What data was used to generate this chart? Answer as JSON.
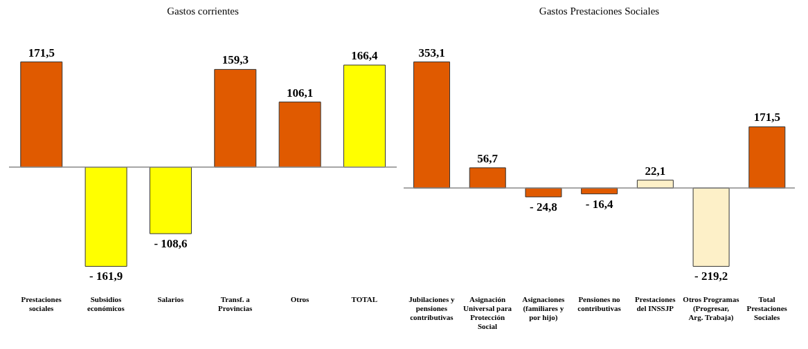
{
  "chart_data": [
    {
      "type": "bar",
      "title": "Gastos corrientes",
      "categories": [
        "Prestaciones sociales",
        "Subsidios económicos",
        "Salarios",
        "Transf. a Provincias",
        "Otros",
        "TOTAL"
      ],
      "values": [
        171.5,
        -161.9,
        -108.6,
        159.3,
        106.1,
        166.4
      ],
      "colors": [
        "#e05a00",
        "#ffff00",
        "#ffff00",
        "#e05a00",
        "#e05a00",
        "#ffff00"
      ],
      "value_labels": [
        "171,5",
        "- 161,9",
        "- 108,6",
        "159,3",
        "106,1",
        "166,4"
      ]
    },
    {
      "type": "bar",
      "title": "Gastos Prestaciones Sociales",
      "categories": [
        "Jubilaciones y pensiones contributivas",
        "Asignación Universal para Protección Social",
        "Asignaciones (familiares y por hijo)",
        "Pensiones no contributivas",
        "Prestaciones del INSSJP",
        "Otros Programas (Progresar, Arg. Trabaja)",
        "Total Prestaciones Sociales"
      ],
      "values": [
        353.1,
        56.7,
        -24.8,
        -16.4,
        22.1,
        -219.2,
        171.5
      ],
      "colors": [
        "#e05a00",
        "#e05a00",
        "#e05a00",
        "#e05a00",
        "#fdf0c8",
        "#fdf0c8",
        "#e05a00"
      ],
      "value_labels": [
        "353,1",
        "56,7",
        "- 24,8",
        "- 16,4",
        "22,1",
        "- 219,2",
        "171,5"
      ]
    }
  ]
}
